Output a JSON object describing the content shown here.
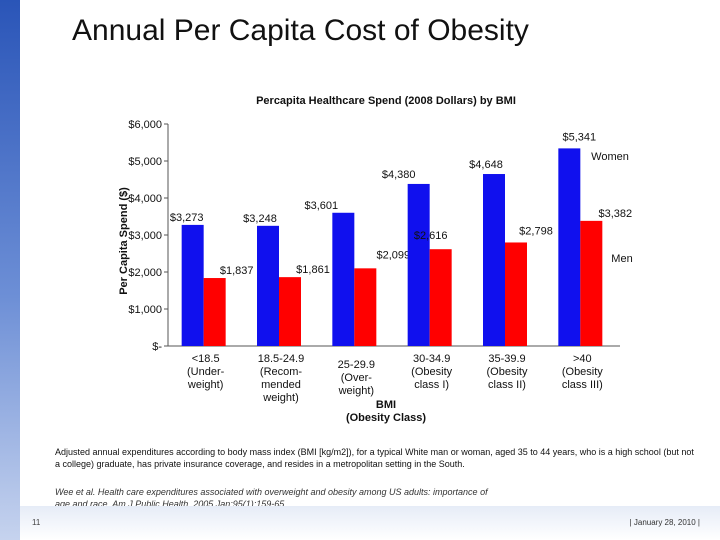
{
  "slide": {
    "title": "Annual Per Capita Cost of Obesity",
    "caption": "Adjusted annual expenditures according to body mass index (BMI [kg/m2]), for a typical White man or woman, aged 35 to 44 years, who is a high school (but not a college) graduate, has private insurance coverage, and resides in a metropolitan setting in the South.",
    "citation": "Wee et al. Health care expenditures associated with overweight and obesity among US adults: importance of age and race. Am J Public Health. 2005 Jan;95(1):159-65.",
    "slide_number": "11",
    "footer_date": "|  January 28, 2010  |",
    "sidebar_color": "#2a55b8"
  },
  "chart_data": {
    "type": "bar",
    "title": "Percapita Healthcare Spend (2008 Dollars) by BMI",
    "ylabel": "Per Capita Spend ($)",
    "xlabel": "BMI\n(Obesity Class)",
    "ylim": [
      0,
      6000
    ],
    "yticks": [
      "$-",
      "$1,000",
      "$2,000",
      "$3,000",
      "$4,000",
      "$5,000",
      "$6,000"
    ],
    "categories": [
      "<18.5\n(Under-\nweight)",
      "18.5-24.9\n(Recom-\nmended\nweight)",
      "25-29.9\n(Over-\nweight)",
      "30-34.9\n(Obesity\nclass I)",
      "35-39.9\n(Obesity\nclass II)",
      ">40\n(Obesity\nclass III)"
    ],
    "series": [
      {
        "name": "Women",
        "color": "#1010ee",
        "values": [
          3273,
          3248,
          3601,
          4380,
          4648,
          5341
        ],
        "labels": [
          "$3,273",
          "$3,248",
          "$3,601",
          "$4,380",
          "$4,648",
          "$5,341"
        ]
      },
      {
        "name": "Men",
        "color": "#ff0000",
        "values": [
          1837,
          1861,
          2099,
          2616,
          2798,
          3382
        ],
        "labels": [
          "$1,837",
          "$1,861",
          "$2,099",
          "$2,616",
          "$2,798",
          "$3,382"
        ]
      }
    ],
    "legend": "right (series names printed beside last bars)",
    "grid": false
  }
}
